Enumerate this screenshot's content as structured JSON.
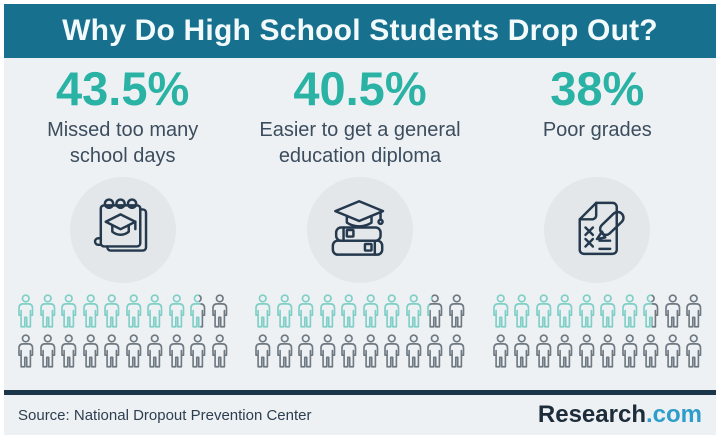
{
  "header": {
    "title": "Why Do High School Students Drop Out?"
  },
  "columns": [
    {
      "percent": "43.5%",
      "label": "Missed too many school days",
      "icon": "notepad-graduation-icon",
      "people_filled": 8.7,
      "people_total": 20
    },
    {
      "percent": "40.5%",
      "label": "Easier to get a general education diploma",
      "icon": "books-graduation-icon",
      "people_filled": 8.1,
      "people_total": 20
    },
    {
      "percent": "38%",
      "label": "Poor grades",
      "icon": "exam-x-marks-icon",
      "people_filled": 7.6,
      "people_total": 20
    }
  ],
  "footer": {
    "source": "Source: National Dropout Prevention Center",
    "brand_name": "Research",
    "brand_tld": ".com"
  },
  "colors": {
    "header_bg": "#16708e",
    "accent_teal": "#2ab2a5",
    "label_dark": "#3c4d5e",
    "icon_navy": "#24394d",
    "person_teal": "#7fcfc7",
    "person_gray": "#6f7982",
    "divider_navy": "#1c3649",
    "page_bg": "#eef1f4",
    "circle_bg": "#e4e7e9",
    "brand_dark": "#1d2c3a",
    "brand_blue": "#2f9dc9"
  },
  "chart_data": {
    "type": "pictogram",
    "title": "Why Do High School Students Drop Out?",
    "categories": [
      "Missed too many school days",
      "Easier to get a general education diploma",
      "Poor grades"
    ],
    "values": [
      43.5,
      40.5,
      38
    ],
    "unit": "%",
    "icons_per_category": 20,
    "icon_value_percent": 5,
    "filled_icons": [
      8.7,
      8.1,
      7.6
    ],
    "legend_position": "none",
    "source": "Source: National Dropout Prevention Center"
  }
}
